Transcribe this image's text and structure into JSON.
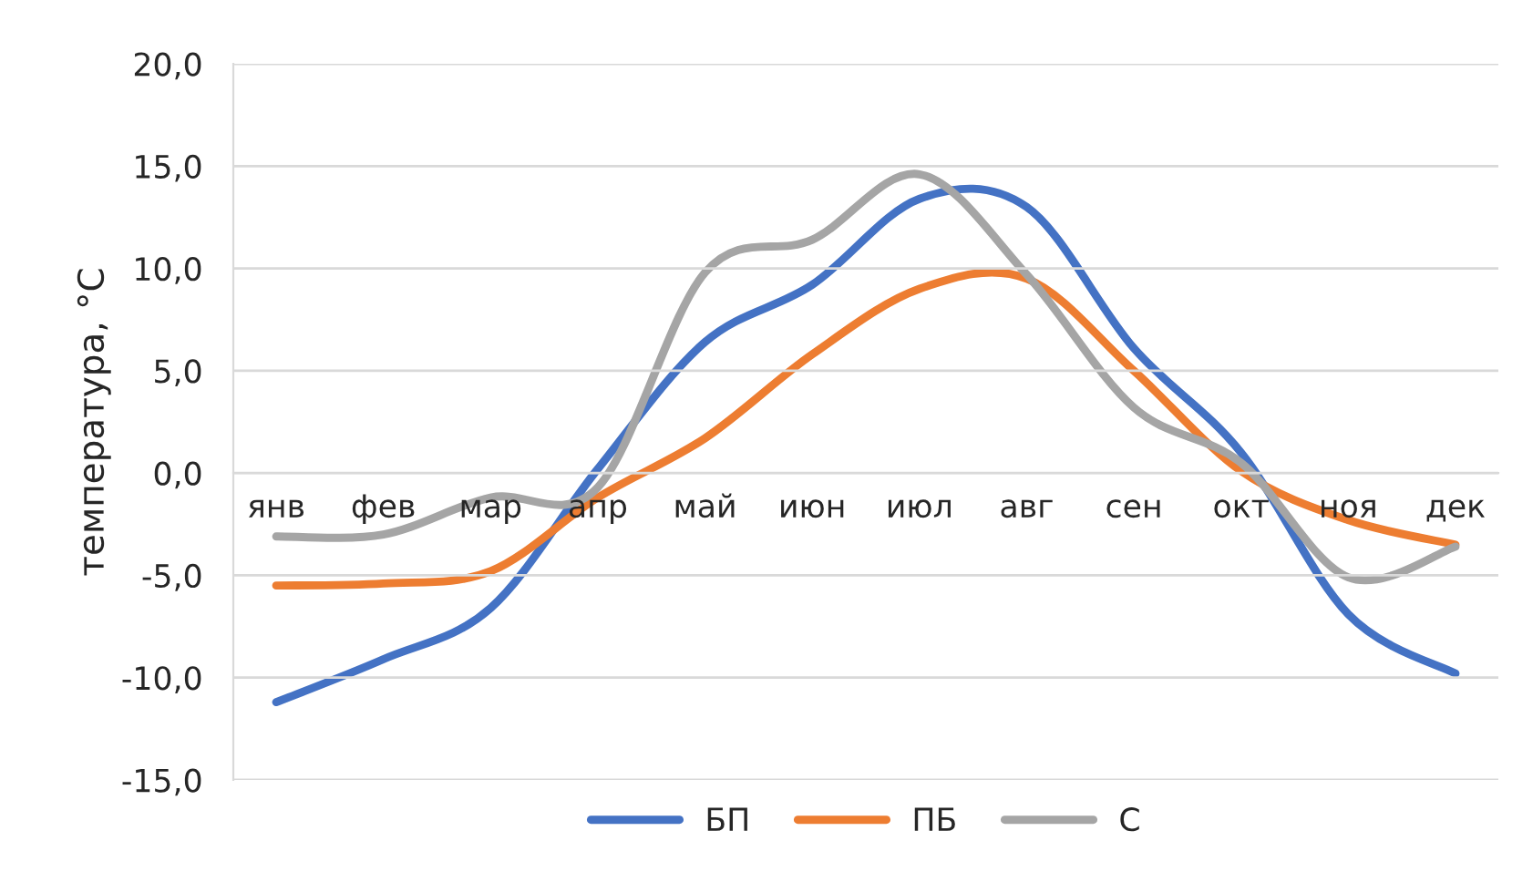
{
  "chart_data": {
    "type": "line",
    "ylabel": "температура, °C",
    "categories": [
      "янв",
      "фев",
      "мар",
      "апр",
      "май",
      "июн",
      "июл",
      "авг",
      "сен",
      "окт",
      "ноя",
      "дек"
    ],
    "series": [
      {
        "name": "БП",
        "color": "#4472c4",
        "values": [
          -11.2,
          -9.1,
          -6.6,
          0.2,
          6.4,
          9.2,
          13.4,
          13.0,
          6.1,
          1.0,
          -6.9,
          -9.8
        ]
      },
      {
        "name": "ПБ",
        "color": "#ed7d31",
        "values": [
          -5.5,
          -5.4,
          -4.8,
          -1.2,
          1.7,
          5.8,
          9.0,
          9.5,
          5.0,
          0.1,
          -2.3,
          -3.5
        ]
      },
      {
        "name": "С",
        "color": "#a5a5a5",
        "values": [
          -3.1,
          -3.0,
          -1.2,
          -0.7,
          9.8,
          11.4,
          14.6,
          9.7,
          3.2,
          0.5,
          -5.1,
          -3.6
        ]
      }
    ],
    "ylim": [
      -15,
      20
    ],
    "yticks": [
      {
        "value": -15,
        "label": "-15,0"
      },
      {
        "value": -10,
        "label": "-10,0"
      },
      {
        "value": -5,
        "label": "-5,0"
      },
      {
        "value": 0,
        "label": "0,0"
      },
      {
        "value": 5,
        "label": "5,0"
      },
      {
        "value": 10,
        "label": "10,0"
      },
      {
        "value": 15,
        "label": "15,0"
      },
      {
        "value": 20,
        "label": "20,0"
      }
    ],
    "grid": "y",
    "legend": "bottom",
    "marker": "none",
    "line_style": "solid"
  }
}
